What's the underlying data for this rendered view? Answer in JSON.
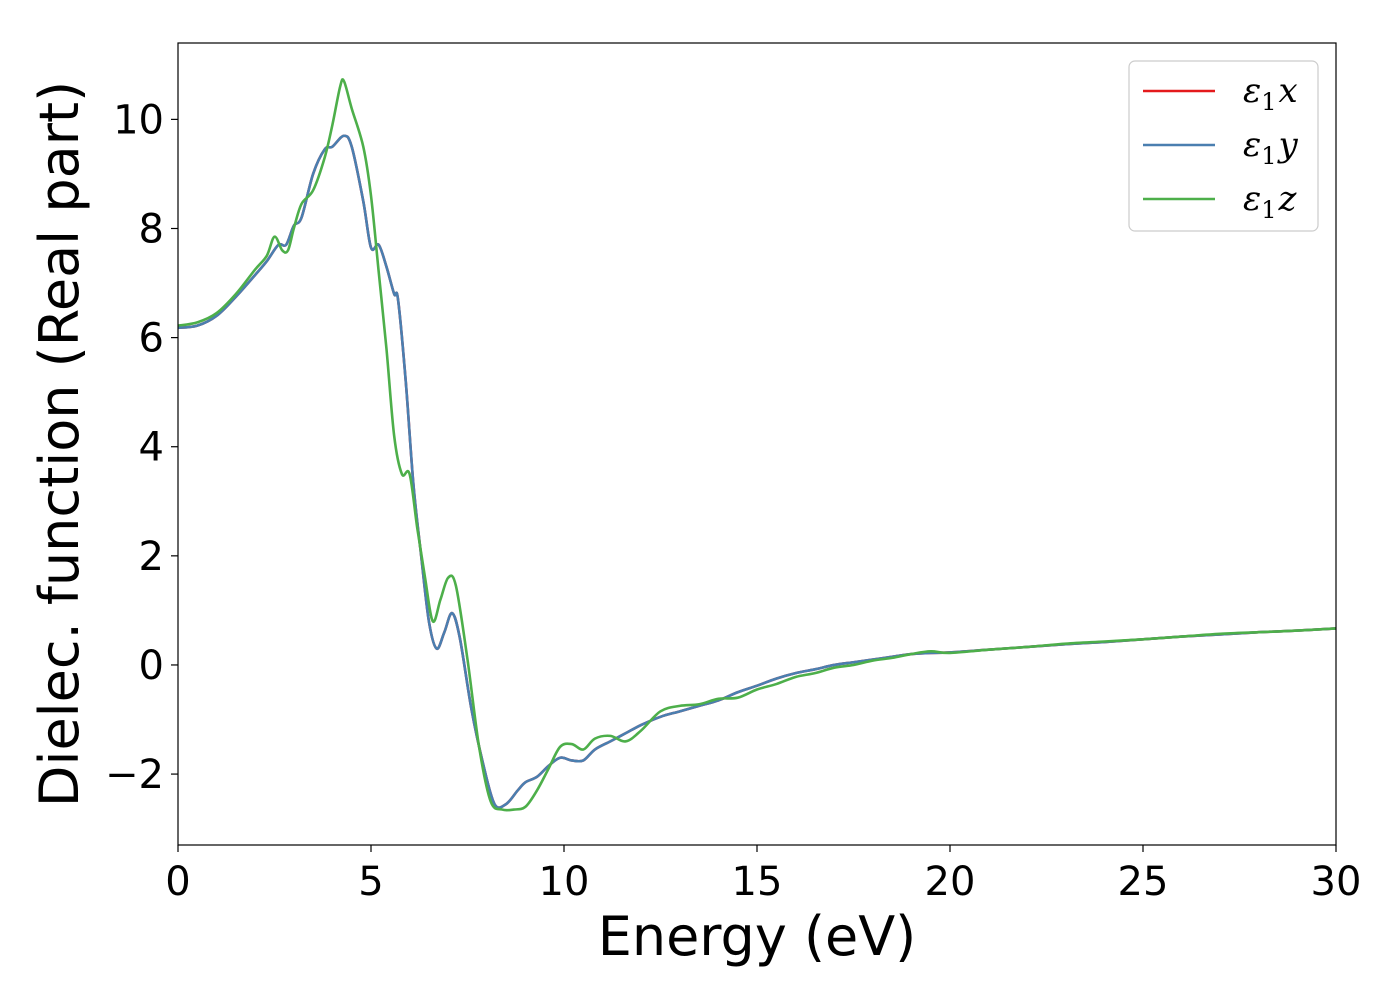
{
  "chart_data": {
    "type": "line",
    "title": "",
    "xlabel": "Energy (eV)",
    "ylabel": "Dielec. function (Real part)",
    "xlim": [
      0,
      30
    ],
    "ylim": [
      -3.3,
      11.4
    ],
    "xticks": [
      0,
      5,
      10,
      15,
      20,
      25,
      30
    ],
    "yticks": [
      -2,
      0,
      2,
      4,
      6,
      8,
      10
    ],
    "ytick_labels": [
      "−2",
      "0",
      "2",
      "4",
      "6",
      "8",
      "10"
    ],
    "grid": false,
    "legend_position": "top-right",
    "series": [
      {
        "name": "ε1x",
        "legend_sub": "1",
        "legend_base": "ε",
        "legend_axis": "x",
        "color": "#e41a1c",
        "x": [
          0,
          0.5,
          1.0,
          1.5,
          2.0,
          2.3,
          2.6,
          2.8,
          3.0,
          3.2,
          3.5,
          3.8,
          4.0,
          4.3,
          4.5,
          4.8,
          5.0,
          5.2,
          5.4,
          5.6,
          5.7,
          5.9,
          6.1,
          6.3,
          6.5,
          6.7,
          6.9,
          7.1,
          7.3,
          7.6,
          7.9,
          8.2,
          8.5,
          8.8,
          9.0,
          9.3,
          9.6,
          9.9,
          10.2,
          10.5,
          10.8,
          11.2,
          11.6,
          12.0,
          12.5,
          13.0,
          13.5,
          14.0,
          14.5,
          15.0,
          15.5,
          16.0,
          16.5,
          17.0,
          17.5,
          18.0,
          18.5,
          19.0,
          19.5,
          20.0,
          21.0,
          22.0,
          23.0,
          24.0,
          25.0,
          26.0,
          27.0,
          28.0,
          29.0,
          30.0
        ],
        "y": [
          6.18,
          6.22,
          6.4,
          6.75,
          7.15,
          7.4,
          7.7,
          7.7,
          8.05,
          8.2,
          9.0,
          9.45,
          9.5,
          9.7,
          9.5,
          8.5,
          7.65,
          7.7,
          7.3,
          6.8,
          6.7,
          5.2,
          3.3,
          2.0,
          0.8,
          0.3,
          0.6,
          0.95,
          0.5,
          -0.8,
          -1.8,
          -2.55,
          -2.55,
          -2.3,
          -2.15,
          -2.05,
          -1.85,
          -1.7,
          -1.75,
          -1.75,
          -1.55,
          -1.4,
          -1.25,
          -1.1,
          -0.95,
          -0.85,
          -0.75,
          -0.65,
          -0.5,
          -0.38,
          -0.25,
          -0.15,
          -0.08,
          0.0,
          0.05,
          0.1,
          0.15,
          0.2,
          0.22,
          0.23,
          0.28,
          0.33,
          0.38,
          0.42,
          0.47,
          0.52,
          0.56,
          0.6,
          0.63,
          0.67
        ]
      },
      {
        "name": "ε1y",
        "legend_sub": "1",
        "legend_base": "ε",
        "legend_axis": "y",
        "color": "#4a7fb0",
        "x": [
          0,
          0.5,
          1.0,
          1.5,
          2.0,
          2.3,
          2.6,
          2.8,
          3.0,
          3.2,
          3.5,
          3.8,
          4.0,
          4.3,
          4.5,
          4.8,
          5.0,
          5.2,
          5.4,
          5.6,
          5.7,
          5.9,
          6.1,
          6.3,
          6.5,
          6.7,
          6.9,
          7.1,
          7.3,
          7.6,
          7.9,
          8.2,
          8.5,
          8.8,
          9.0,
          9.3,
          9.6,
          9.9,
          10.2,
          10.5,
          10.8,
          11.2,
          11.6,
          12.0,
          12.5,
          13.0,
          13.5,
          14.0,
          14.5,
          15.0,
          15.5,
          16.0,
          16.5,
          17.0,
          17.5,
          18.0,
          18.5,
          19.0,
          19.5,
          20.0,
          21.0,
          22.0,
          23.0,
          24.0,
          25.0,
          26.0,
          27.0,
          28.0,
          29.0,
          30.0
        ],
        "y": [
          6.18,
          6.22,
          6.4,
          6.75,
          7.15,
          7.4,
          7.7,
          7.7,
          8.05,
          8.2,
          9.0,
          9.45,
          9.5,
          9.7,
          9.5,
          8.5,
          7.65,
          7.7,
          7.3,
          6.8,
          6.7,
          5.2,
          3.3,
          2.0,
          0.8,
          0.3,
          0.6,
          0.95,
          0.5,
          -0.8,
          -1.8,
          -2.55,
          -2.55,
          -2.3,
          -2.15,
          -2.05,
          -1.85,
          -1.7,
          -1.75,
          -1.75,
          -1.55,
          -1.4,
          -1.25,
          -1.1,
          -0.95,
          -0.85,
          -0.75,
          -0.65,
          -0.5,
          -0.38,
          -0.25,
          -0.15,
          -0.08,
          0.0,
          0.05,
          0.1,
          0.15,
          0.2,
          0.22,
          0.23,
          0.28,
          0.33,
          0.38,
          0.42,
          0.47,
          0.52,
          0.56,
          0.6,
          0.63,
          0.67
        ]
      },
      {
        "name": "ε1z",
        "legend_sub": "1",
        "legend_base": "ε",
        "legend_axis": "z",
        "color": "#4daf4a",
        "x": [
          0,
          0.5,
          1.0,
          1.5,
          2.0,
          2.3,
          2.5,
          2.7,
          2.85,
          3.0,
          3.2,
          3.5,
          3.8,
          4.0,
          4.2,
          4.3,
          4.5,
          4.8,
          5.0,
          5.2,
          5.4,
          5.6,
          5.8,
          6.0,
          6.2,
          6.4,
          6.6,
          6.8,
          7.0,
          7.2,
          7.5,
          7.8,
          8.1,
          8.4,
          8.7,
          9.0,
          9.3,
          9.6,
          9.9,
          10.2,
          10.5,
          10.8,
          11.2,
          11.6,
          12.0,
          12.5,
          13.0,
          13.5,
          14.0,
          14.5,
          15.0,
          15.5,
          16.0,
          16.5,
          17.0,
          17.5,
          18.0,
          18.5,
          19.0,
          19.5,
          20.0,
          21.0,
          22.0,
          23.0,
          24.0,
          25.0,
          26.0,
          27.0,
          28.0,
          29.0,
          30.0
        ],
        "y": [
          6.22,
          6.28,
          6.45,
          6.8,
          7.25,
          7.5,
          7.85,
          7.6,
          7.6,
          8.0,
          8.45,
          8.7,
          9.3,
          9.9,
          10.6,
          10.7,
          10.2,
          9.5,
          8.6,
          7.2,
          5.8,
          4.2,
          3.5,
          3.5,
          2.5,
          1.6,
          0.8,
          1.2,
          1.6,
          1.45,
          0.1,
          -1.5,
          -2.5,
          -2.65,
          -2.65,
          -2.6,
          -2.3,
          -1.9,
          -1.5,
          -1.45,
          -1.55,
          -1.35,
          -1.3,
          -1.4,
          -1.2,
          -0.85,
          -0.75,
          -0.72,
          -0.62,
          -0.6,
          -0.45,
          -0.35,
          -0.22,
          -0.15,
          -0.05,
          0.0,
          0.08,
          0.13,
          0.2,
          0.25,
          0.22,
          0.28,
          0.33,
          0.39,
          0.43,
          0.47,
          0.52,
          0.57,
          0.6,
          0.63,
          0.67
        ]
      }
    ]
  }
}
